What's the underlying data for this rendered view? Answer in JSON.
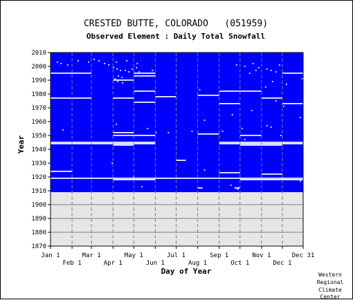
{
  "chart_data": {
    "type": "heatmap",
    "title": "CRESTED BUTTE, COLORADO   (051959)",
    "subtitle": "Observed Element : Daily Total Snowfall",
    "xlabel": "Day of Year",
    "ylabel": "Year",
    "credit_lines": [
      "Western",
      "Regional",
      "Climate",
      "Center"
    ],
    "x_ticks_top_row": [
      "Jan 1",
      "Mar 1",
      "May 1",
      "Jul 1",
      "Sep 1",
      "Nov 1",
      "Dec 31"
    ],
    "x_ticks_bottom_row": [
      "Feb 1",
      "Apr 1",
      "Jun 1",
      "Aug 1",
      "Oct 1",
      "Dec 1"
    ],
    "x_tick_days": {
      "Jan 1": 1,
      "Feb 1": 32,
      "Mar 1": 60,
      "Apr 1": 91,
      "May 1": 121,
      "Jun 1": 152,
      "Jul 1": 182,
      "Aug 1": 213,
      "Sep 1": 244,
      "Oct 1": 274,
      "Nov 1": 305,
      "Dec 1": 335,
      "Dec 31": 365
    },
    "y_ticks": [
      2010,
      2000,
      1990,
      1980,
      1970,
      1960,
      1950,
      1940,
      1930,
      1920,
      1910,
      1900,
      1890,
      1880,
      1870
    ],
    "ylim": [
      1870,
      2010
    ],
    "xlim": [
      1,
      365
    ],
    "data_coverage": {
      "first_year": 1909,
      "last_year": 2010,
      "present_color": "#0000ff",
      "missing_color": "#ffffff",
      "empty_background": "#e6e6e6"
    },
    "missing_segments": [
      {
        "year": 1995,
        "start_day": 1,
        "end_day": 60
      },
      {
        "year": 1995,
        "start_day": 121,
        "end_day": 152
      },
      {
        "year": 1995,
        "start_day": 335,
        "end_day": 365
      },
      {
        "year": 1993,
        "start_day": 121,
        "end_day": 152
      },
      {
        "year": 1990,
        "start_day": 91,
        "end_day": 121
      },
      {
        "year": 1982,
        "start_day": 121,
        "end_day": 152
      },
      {
        "year": 1982,
        "start_day": 244,
        "end_day": 274
      },
      {
        "year": 1982,
        "start_day": 274,
        "end_day": 305
      },
      {
        "year": 1979,
        "start_day": 213,
        "end_day": 244
      },
      {
        "year": 1978,
        "start_day": 152,
        "end_day": 182
      },
      {
        "year": 1977,
        "start_day": 1,
        "end_day": 60
      },
      {
        "year": 1977,
        "start_day": 91,
        "end_day": 121
      },
      {
        "year": 1977,
        "start_day": 305,
        "end_day": 335
      },
      {
        "year": 1974,
        "start_day": 121,
        "end_day": 152
      },
      {
        "year": 1973,
        "start_day": 244,
        "end_day": 274
      },
      {
        "year": 1973,
        "start_day": 335,
        "end_day": 365
      },
      {
        "year": 1952,
        "start_day": 91,
        "end_day": 121
      },
      {
        "year": 1951,
        "start_day": 213,
        "end_day": 244
      },
      {
        "year": 1950,
        "start_day": 91,
        "end_day": 152
      },
      {
        "year": 1950,
        "start_day": 274,
        "end_day": 305
      },
      {
        "year": 1945,
        "start_day": 1,
        "end_day": 152
      },
      {
        "year": 1945,
        "start_day": 244,
        "end_day": 365
      },
      {
        "year": 1944,
        "start_day": 1,
        "end_day": 152
      },
      {
        "year": 1944,
        "start_day": 244,
        "end_day": 365
      },
      {
        "year": 1943,
        "start_day": 91,
        "end_day": 121
      },
      {
        "year": 1943,
        "start_day": 274,
        "end_day": 335
      },
      {
        "year": 1932,
        "start_day": 182,
        "end_day": 196
      },
      {
        "year": 1924,
        "start_day": 1,
        "end_day": 32
      },
      {
        "year": 1923,
        "start_day": 244,
        "end_day": 274
      },
      {
        "year": 1922,
        "start_day": 305,
        "end_day": 335
      },
      {
        "year": 1919,
        "start_day": 1,
        "end_day": 365
      },
      {
        "year": 1918,
        "start_day": 91,
        "end_day": 152
      },
      {
        "year": 1918,
        "start_day": 274,
        "end_day": 365
      },
      {
        "year": 1912,
        "start_day": 213,
        "end_day": 220
      },
      {
        "year": 1912,
        "start_day": 266,
        "end_day": 274
      }
    ],
    "missing_points": [
      [
        2003,
        10
      ],
      [
        2002,
        15
      ],
      [
        2001,
        25
      ],
      [
        2004,
        40
      ],
      [
        2003,
        55
      ],
      [
        2005,
        63
      ],
      [
        2004,
        70
      ],
      [
        2002,
        78
      ],
      [
        2001,
        84
      ],
      [
        2003,
        95
      ],
      [
        2004,
        110
      ],
      [
        2002,
        125
      ],
      [
        1999,
        91
      ],
      [
        1998,
        96
      ],
      [
        1997,
        101
      ],
      [
        1997,
        108
      ],
      [
        1996,
        113
      ],
      [
        1998,
        118
      ],
      [
        1999,
        124
      ],
      [
        1996,
        128
      ],
      [
        1993,
        98
      ],
      [
        1992,
        103
      ],
      [
        1991,
        93
      ],
      [
        1989,
        97
      ],
      [
        1988,
        104
      ],
      [
        1997,
        147
      ],
      [
        1993,
        140
      ],
      [
        2001,
        268
      ],
      [
        2000,
        280
      ],
      [
        2002,
        292
      ],
      [
        1999,
        300
      ],
      [
        1998,
        312
      ],
      [
        1997,
        318
      ],
      [
        1996,
        325
      ],
      [
        2001,
        330
      ],
      [
        1997,
        296
      ],
      [
        1995,
        287
      ],
      [
        1989,
        320
      ],
      [
        1987,
        340
      ],
      [
        1991,
        363
      ],
      [
        1985,
        310
      ],
      [
        1983,
        215
      ],
      [
        1975,
        325
      ],
      [
        1971,
        336
      ],
      [
        1968,
        290
      ],
      [
        1965,
        262
      ],
      [
        1963,
        360
      ],
      [
        1961,
        222
      ],
      [
        1958,
        95
      ],
      [
        1957,
        312
      ],
      [
        1956,
        318
      ],
      [
        1955,
        276
      ],
      [
        1955,
        140
      ],
      [
        1954,
        18
      ],
      [
        1953,
        204
      ],
      [
        1953,
        248
      ],
      [
        1952,
        152
      ],
      [
        1952,
        170
      ],
      [
        1950,
        332
      ],
      [
        1947,
        280
      ],
      [
        1930,
        89
      ],
      [
        1925,
        222
      ],
      [
        1920,
        120
      ],
      [
        1917,
        360
      ],
      [
        1914,
        260
      ],
      [
        1913,
        132
      ],
      [
        1911,
        270
      ]
    ]
  }
}
